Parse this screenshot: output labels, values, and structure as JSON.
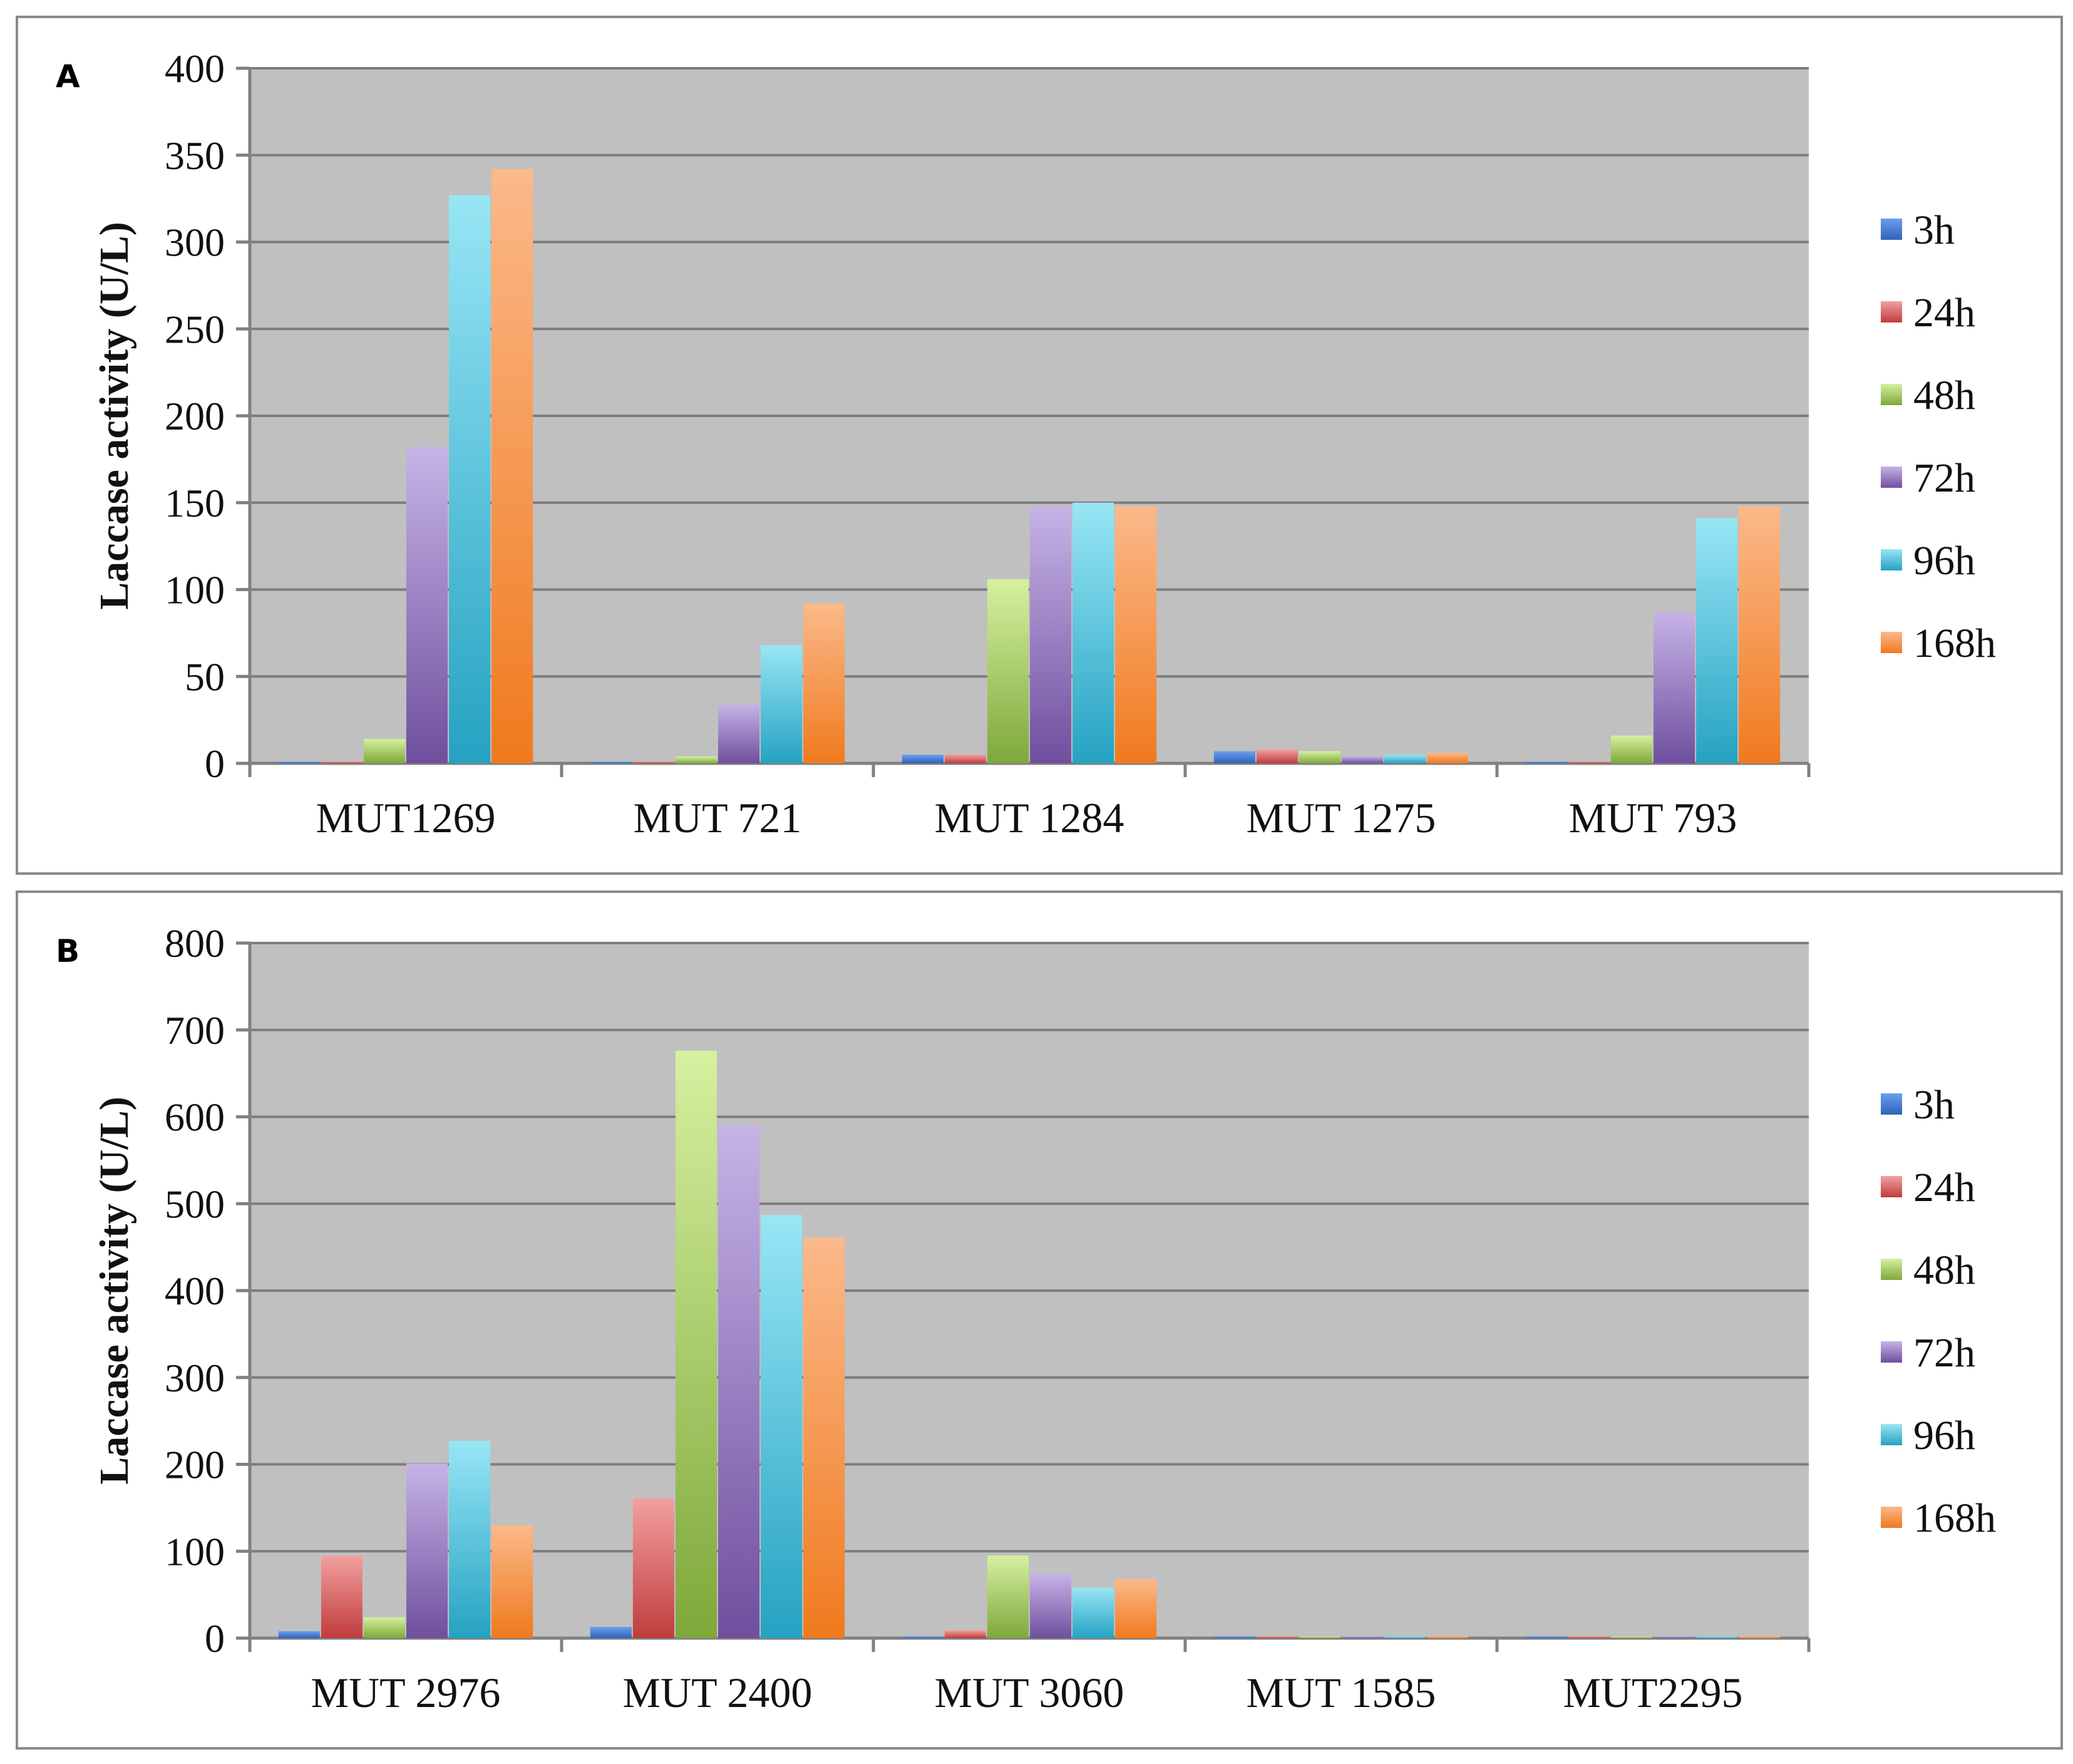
{
  "colors": {
    "3h": [
      "#6b9ff0",
      "#2f62b8"
    ],
    "24h": [
      "#f3a0a0",
      "#c03c3c"
    ],
    "48h": [
      "#d6f0a0",
      "#7ea83a"
    ],
    "72h": [
      "#c6b3e6",
      "#6f4f9e"
    ],
    "96h": [
      "#98e6f5",
      "#25a2c2"
    ],
    "168h": [
      "#fbb98a",
      "#f07a1e"
    ]
  },
  "chart_data": [
    {
      "panel": "A",
      "type": "bar",
      "ylabel": "Laccase activity (U/L)",
      "ylim": [
        0,
        400
      ],
      "yticks": [
        0,
        50,
        100,
        150,
        200,
        250,
        300,
        350,
        400
      ],
      "categories": [
        "MUT1269",
        "MUT 721",
        "MUT 1284",
        "MUT 1275",
        "MUT 793"
      ],
      "series": [
        {
          "name": "3h",
          "values": [
            1,
            1,
            5,
            7,
            1
          ]
        },
        {
          "name": "24h",
          "values": [
            1,
            1,
            5,
            8,
            1
          ]
        },
        {
          "name": "48h",
          "values": [
            14,
            4,
            106,
            7,
            16
          ]
        },
        {
          "name": "72h",
          "values": [
            182,
            34,
            148,
            4,
            87
          ]
        },
        {
          "name": "96h",
          "values": [
            327,
            68,
            150,
            5,
            141
          ]
        },
        {
          "name": "168h",
          "values": [
            342,
            92,
            148,
            6,
            148
          ]
        }
      ],
      "grid": true,
      "legend": "right"
    },
    {
      "panel": "B",
      "type": "bar",
      "ylabel": "Laccase activity (U/L)",
      "ylim": [
        0,
        800
      ],
      "yticks": [
        0,
        100,
        200,
        300,
        400,
        500,
        600,
        700,
        800
      ],
      "categories": [
        "MUT 2976",
        "MUT 2400",
        "MUT 3060",
        "MUT 1585",
        "MUT2295"
      ],
      "series": [
        {
          "name": "3h",
          "values": [
            8,
            13,
            2,
            2,
            2
          ]
        },
        {
          "name": "24h",
          "values": [
            95,
            161,
            9,
            2,
            2
          ]
        },
        {
          "name": "48h",
          "values": [
            24,
            676,
            95,
            2,
            2
          ]
        },
        {
          "name": "72h",
          "values": [
            201,
            590,
            74,
            2,
            2
          ]
        },
        {
          "name": "96h",
          "values": [
            227,
            487,
            58,
            2,
            2
          ]
        },
        {
          "name": "168h",
          "values": [
            130,
            461,
            68,
            2,
            2
          ]
        }
      ],
      "grid": true,
      "legend": "right"
    }
  ]
}
